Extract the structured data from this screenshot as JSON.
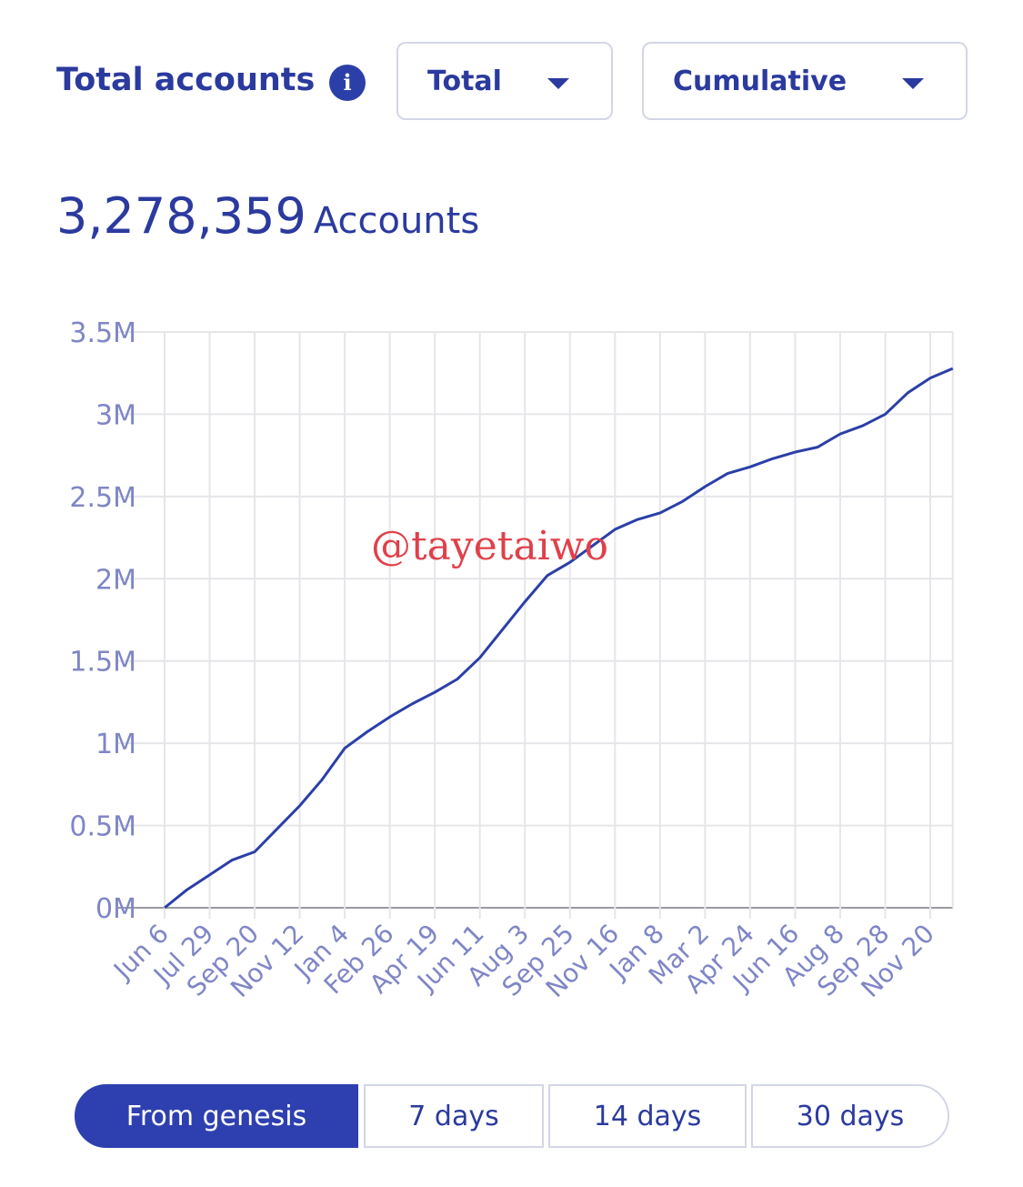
{
  "header": {
    "title": "Total accounts",
    "info_icon": "i",
    "dropdowns": [
      "Total",
      "Cumulative"
    ]
  },
  "summary": {
    "value": "3,278,359",
    "unit": "Accounts"
  },
  "chart_data": {
    "type": "line",
    "color": "#2b3fa8",
    "grid": true,
    "categories": [
      "Jun 6",
      null,
      "Jul 29",
      null,
      "Sep 20",
      null,
      "Nov 12",
      null,
      "Jan 4",
      null,
      "Feb 26",
      null,
      "Apr 19",
      null,
      "Jun 11",
      null,
      "Aug 3",
      null,
      "Sep 25",
      null,
      "Nov 16",
      null,
      "Jan 8",
      null,
      "Mar 2",
      null,
      "Apr 24",
      null,
      "Jun 16",
      null,
      "Aug 8",
      null,
      "Sep 28",
      null,
      "Nov 20",
      null
    ],
    "values": [
      0,
      110000,
      200000,
      290000,
      340000,
      480000,
      620000,
      780000,
      970000,
      1070000,
      1160000,
      1240000,
      1310000,
      1390000,
      1520000,
      1690000,
      1860000,
      2020000,
      2100000,
      2200000,
      2300000,
      2360000,
      2400000,
      2470000,
      2560000,
      2640000,
      2680000,
      2730000,
      2770000,
      2800000,
      2880000,
      2930000,
      3000000,
      3130000,
      3220000,
      3278359
    ],
    "ylim": [
      0,
      3500000
    ],
    "yticks": [
      {
        "value": 0,
        "label": "0M"
      },
      {
        "value": 500000,
        "label": "0.5M"
      },
      {
        "value": 1000000,
        "label": "1M"
      },
      {
        "value": 1500000,
        "label": "1.5M"
      },
      {
        "value": 2000000,
        "label": "2M"
      },
      {
        "value": 2500000,
        "label": "2.5M"
      },
      {
        "value": 3000000,
        "label": "3M"
      },
      {
        "value": 3500000,
        "label": "3.5M"
      }
    ],
    "watermark": "@tayetaiwo"
  },
  "range_buttons": [
    "From genesis",
    "7 days",
    "14 days",
    "30 days"
  ]
}
